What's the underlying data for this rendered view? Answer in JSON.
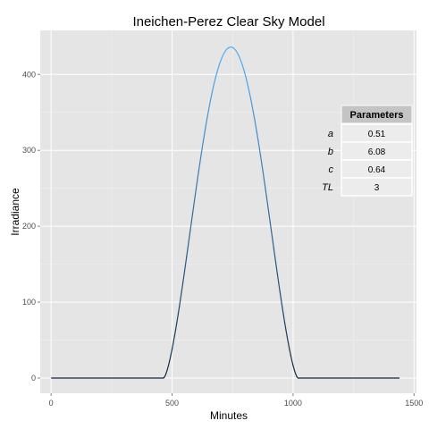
{
  "chart_data": {
    "type": "line",
    "title": "Ineichen-Perez Clear Sky Model",
    "xlabel": "Minutes",
    "ylabel": "Irradiance",
    "xlim": [
      -45,
      1510
    ],
    "ylim": [
      -20,
      458
    ],
    "x_ticks": [
      0,
      500,
      1000,
      1500
    ],
    "y_ticks": [
      0,
      100,
      200,
      300,
      400
    ],
    "grid": true,
    "sunrise_minute": 465,
    "sunset_minute": 1020,
    "peak_minute": 742,
    "peak_value": 436,
    "series": [
      {
        "x": [
          0,
          465,
          500,
          550,
          600,
          650,
          700,
          742,
          800,
          850,
          900,
          950,
          1000,
          1020,
          1440
        ],
        "y": [
          0,
          0,
          107,
          232,
          332,
          398,
          430,
          436,
          420,
          370,
          288,
          178,
          50,
          0,
          0
        ]
      }
    ],
    "color_low": "#132b43",
    "color_high": "#56b1f7",
    "parameters_table": {
      "header": "Parameters",
      "rows": [
        {
          "name": "a",
          "value": "0.51"
        },
        {
          "name": "b",
          "value": "6.08"
        },
        {
          "name": "c",
          "value": "0.64"
        },
        {
          "name": "TL",
          "value": "3"
        }
      ]
    },
    "colors": {
      "panel_bg": "#e5e5e5",
      "grid_major": "#ffffff",
      "grid_minor": "#f2f2f2"
    }
  }
}
